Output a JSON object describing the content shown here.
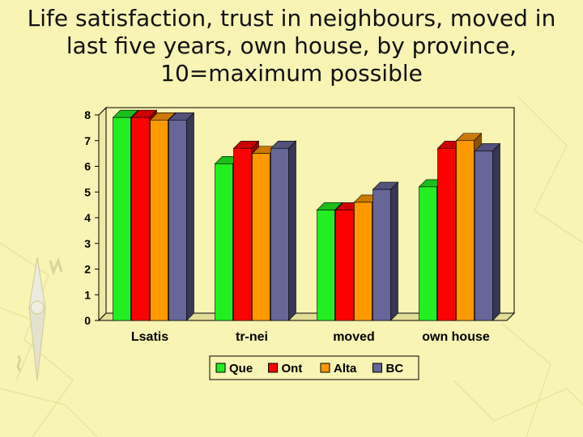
{
  "title_lines": [
    "Life satisfaction, trust in neighbours, moved in",
    "last five years, own house, by province,",
    "10=maximum possible"
  ],
  "chart_data": {
    "type": "bar",
    "categories": [
      "Lsatis",
      "tr-nei",
      "moved",
      "own house"
    ],
    "series": [
      {
        "name": "Que",
        "values": [
          7.9,
          6.1,
          4.3,
          5.2
        ],
        "color": "#22ee22"
      },
      {
        "name": "Ont",
        "values": [
          7.9,
          6.7,
          4.3,
          6.7
        ],
        "color": "#ff0000"
      },
      {
        "name": "Alta",
        "values": [
          7.8,
          6.5,
          4.6,
          7.0
        ],
        "color": "#ff9900"
      },
      {
        "name": "BC",
        "values": [
          7.8,
          6.7,
          5.1,
          6.6
        ],
        "color": "#666699"
      }
    ],
    "yticks": [
      "0",
      "1",
      "2",
      "3",
      "4",
      "5",
      "6",
      "7",
      "8"
    ],
    "ylim": [
      0,
      8
    ],
    "legend_position": "bottom",
    "grid": false
  },
  "colors": {
    "background": "#f7f4b4",
    "plot_area": "#f7f4b4",
    "axis": "#000000"
  }
}
